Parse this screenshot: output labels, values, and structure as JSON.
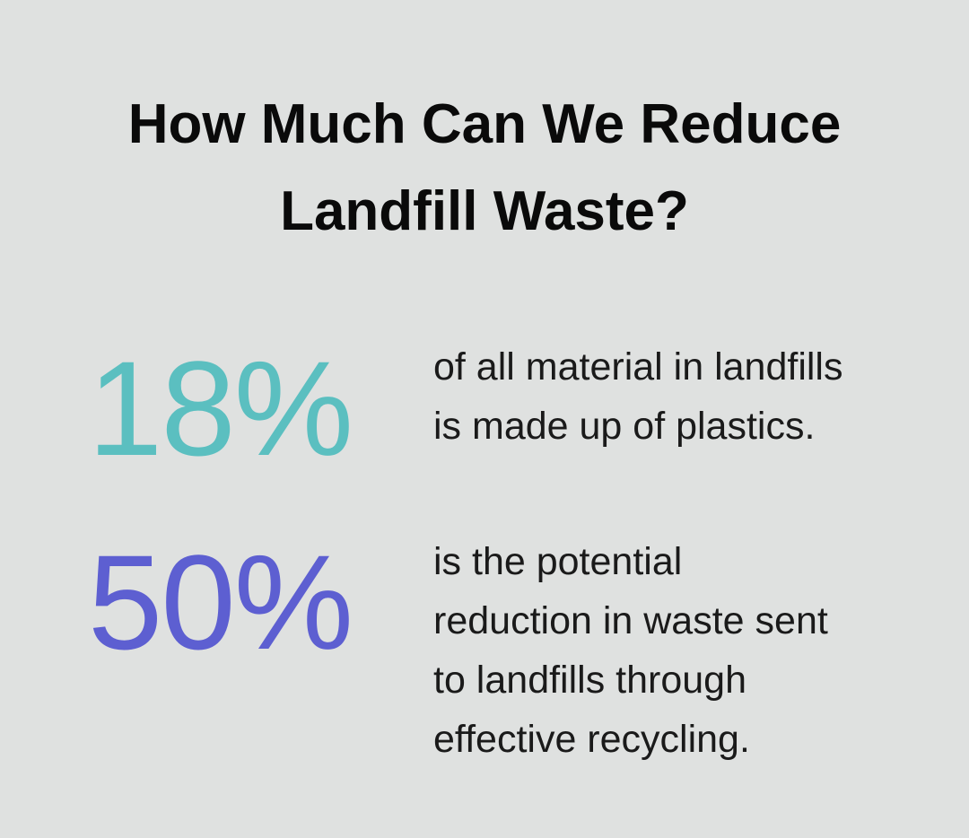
{
  "title": [
    "How Much Can We Reduce",
    "Landfill Waste?"
  ],
  "stats": [
    {
      "value": "18%",
      "color": "#5bbfc0",
      "description": [
        "of all material in landfills",
        "is made up of plastics."
      ]
    },
    {
      "value": "50%",
      "color": "#5d5fd1",
      "description": [
        "is the potential",
        "reduction in waste sent",
        "to landfills through",
        "effective recycling."
      ]
    }
  ]
}
